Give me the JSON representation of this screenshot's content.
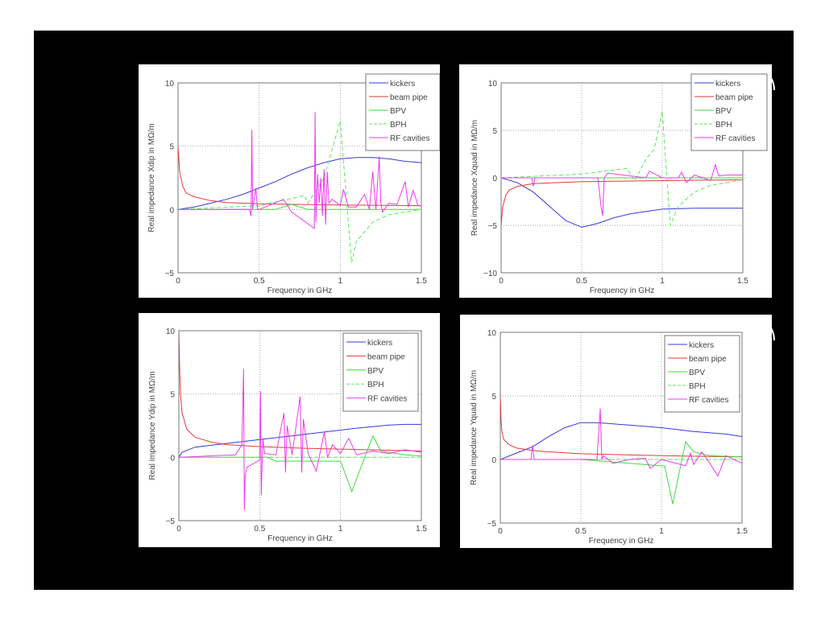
{
  "colors": {
    "kickers": "#3838dc",
    "beam pipe": "#e63a3a",
    "BPV": "#3cdc3c",
    "BPH": "#5ce85c",
    "RF cavities": "#ec3aec"
  },
  "chart_data": [
    {
      "type": "line",
      "title": "",
      "xlabel": "Frequency in GHz",
      "ylabel": "Real impedance Xdip in MΩ/m",
      "xlim": [
        0,
        1.5
      ],
      "ylim": [
        -5,
        10
      ],
      "xticks": [
        "0",
        "0.5",
        "1",
        "1.5"
      ],
      "yticks": [
        "−5",
        "0",
        "5",
        "10"
      ],
      "grid": true,
      "legend": "top-right",
      "series": [
        {
          "name": "kickers",
          "style": "solid",
          "x": [
            0,
            0.1,
            0.2,
            0.3,
            0.4,
            0.5,
            0.6,
            0.7,
            0.8,
            0.9,
            1.0,
            1.1,
            1.2,
            1.3,
            1.4,
            1.5
          ],
          "y": [
            0,
            0.2,
            0.5,
            0.8,
            1.2,
            1.7,
            2.2,
            2.8,
            3.3,
            3.7,
            4.0,
            4.1,
            4.1,
            4.0,
            3.8,
            3.7
          ]
        },
        {
          "name": "beam pipe",
          "style": "solid",
          "x": [
            0,
            0.01,
            0.03,
            0.05,
            0.1,
            0.2,
            0.3,
            0.5,
            1.0,
            1.5
          ],
          "y": [
            5,
            3,
            1.8,
            1.3,
            1.0,
            0.7,
            0.55,
            0.45,
            0.35,
            0.3
          ]
        },
        {
          "name": "BPV",
          "style": "solid",
          "x": [
            0,
            0.6,
            0.7,
            0.8,
            1.5
          ],
          "y": [
            0,
            0,
            0.4,
            0,
            0
          ]
        },
        {
          "name": "BPH",
          "style": "dashed",
          "x": [
            0,
            0.5,
            0.78,
            0.8,
            0.9,
            1.0,
            1.07,
            1.1,
            1.2,
            1.3,
            1.5
          ],
          "y": [
            0,
            0.3,
            1.1,
            0.5,
            2.5,
            7,
            -4.2,
            -2.5,
            -1,
            -0.4,
            0
          ]
        },
        {
          "name": "RF cavities",
          "style": "solid",
          "x": [
            0,
            0.44,
            0.45,
            0.455,
            0.46,
            0.48,
            0.49,
            0.5,
            0.65,
            0.7,
            0.84,
            0.845,
            0.85,
            0.86,
            0.87,
            0.88,
            0.89,
            0.9,
            0.91,
            0.92,
            0.93,
            0.95,
            1.0,
            1.02,
            1.05,
            1.1,
            1.15,
            1.18,
            1.2,
            1.22,
            1.24,
            1.25,
            1.26,
            1.3,
            1.35,
            1.4,
            1.42,
            1.45,
            1.48,
            1.5
          ],
          "y": [
            0,
            0,
            -0.5,
            6.3,
            0,
            1.7,
            0,
            0,
            0.8,
            -0.2,
            -1.5,
            7.7,
            -1,
            2.8,
            0.5,
            2.5,
            -0.5,
            3.2,
            -1.2,
            3,
            0.5,
            0.8,
            0.3,
            1.6,
            0.2,
            0.2,
            1.2,
            0,
            3,
            0,
            4.2,
            0.5,
            -0.2,
            0.5,
            0.4,
            2.2,
            0.2,
            1.5,
            0.3,
            0.3
          ]
        }
      ]
    },
    {
      "type": "line",
      "title": "",
      "xlabel": "Frequency in GHz",
      "ylabel": "Real impedance Xquad in MΩ/m",
      "xlim": [
        0,
        1.5
      ],
      "ylim": [
        -10,
        10
      ],
      "xticks": [
        "0",
        "0.5",
        "1",
        "1.5"
      ],
      "yticks": [
        "−10",
        "−5",
        "0",
        "5",
        "10"
      ],
      "grid": true,
      "legend": "top-right",
      "series": [
        {
          "name": "kickers",
          "style": "solid",
          "x": [
            0,
            0.1,
            0.2,
            0.3,
            0.4,
            0.5,
            0.6,
            0.7,
            0.8,
            1.0,
            1.2,
            1.5
          ],
          "y": [
            0,
            -0.5,
            -1.5,
            -3,
            -4.5,
            -5.2,
            -4.8,
            -4.2,
            -3.8,
            -3.3,
            -3.2,
            -3.2
          ]
        },
        {
          "name": "beam pipe",
          "style": "solid",
          "x": [
            0,
            0.01,
            0.03,
            0.05,
            0.1,
            0.2,
            0.5,
            1.0,
            1.5
          ],
          "y": [
            -5,
            -3,
            -1.8,
            -1.3,
            -0.9,
            -0.6,
            -0.4,
            -0.3,
            -0.2
          ]
        },
        {
          "name": "BPV",
          "style": "solid",
          "x": [
            0,
            1.5
          ],
          "y": [
            0,
            0
          ]
        },
        {
          "name": "BPH",
          "style": "dashed",
          "x": [
            0,
            0.5,
            0.78,
            0.83,
            0.9,
            0.95,
            1.0,
            1.05,
            1.1,
            1.2,
            1.3,
            1.5
          ],
          "y": [
            0,
            0.4,
            1,
            -0.3,
            2,
            3,
            7,
            -5,
            -3,
            -1.5,
            -0.8,
            -0.2
          ]
        },
        {
          "name": "RF cavities",
          "style": "solid",
          "x": [
            0,
            0.19,
            0.2,
            0.21,
            0.6,
            0.62,
            0.63,
            0.64,
            0.66,
            0.9,
            0.92,
            1.0,
            1.1,
            1.12,
            1.15,
            1.2,
            1.3,
            1.33,
            1.35,
            1.4,
            1.5
          ],
          "y": [
            0,
            0,
            -0.9,
            0,
            0,
            -3,
            -4,
            0,
            0.5,
            0,
            0.7,
            0,
            0,
            0.6,
            -0.5,
            0.3,
            -0.3,
            1.4,
            0.2,
            0.3,
            0.3
          ]
        }
      ]
    },
    {
      "type": "line",
      "title": "",
      "xlabel": "Frequency in GHz",
      "ylabel": "Real impedance Ydip in MΩ/m",
      "xlim": [
        0,
        1.5
      ],
      "ylim": [
        -5,
        10
      ],
      "xticks": [
        "0",
        "0.5",
        "1",
        "1.5"
      ],
      "yticks": [
        "−5",
        "0",
        "5",
        "10"
      ],
      "grid": true,
      "legend": "top-right",
      "series": [
        {
          "name": "kickers",
          "style": "solid",
          "x": [
            0,
            0.02,
            0.1,
            0.3,
            0.5,
            0.7,
            0.9,
            1.1,
            1.3,
            1.4,
            1.5
          ],
          "y": [
            0,
            0.4,
            0.8,
            1.1,
            1.4,
            1.7,
            2,
            2.3,
            2.55,
            2.6,
            2.6
          ]
        },
        {
          "name": "beam pipe",
          "style": "solid",
          "x": [
            0,
            0.005,
            0.01,
            0.02,
            0.05,
            0.1,
            0.2,
            0.3,
            0.5,
            0.8,
            1.0,
            1.5
          ],
          "y": [
            10,
            7,
            5,
            3.5,
            2.2,
            1.6,
            1.2,
            1.0,
            0.85,
            0.7,
            0.65,
            0.5
          ]
        },
        {
          "name": "BPV",
          "style": "solid",
          "x": [
            0,
            0.55,
            0.6,
            1.0,
            1.07,
            1.2,
            1.25,
            1.4,
            1.5
          ],
          "y": [
            0,
            0,
            -0.3,
            -0.3,
            -2.7,
            1.7,
            0.5,
            0.2,
            0.1
          ]
        },
        {
          "name": "BPH",
          "style": "dashed",
          "x": [
            0,
            1.5
          ],
          "y": [
            0,
            0
          ]
        },
        {
          "name": "RF cavities",
          "style": "solid",
          "x": [
            0,
            0.35,
            0.39,
            0.4,
            0.405,
            0.41,
            0.42,
            0.5,
            0.505,
            0.51,
            0.52,
            0.53,
            0.6,
            0.65,
            0.66,
            0.67,
            0.7,
            0.75,
            0.76,
            0.77,
            0.8,
            0.85,
            0.9,
            0.92,
            0.95,
            1.0,
            1.05,
            1.1,
            1.2,
            1.3,
            1.4,
            1.5
          ],
          "y": [
            0,
            0.2,
            1,
            7,
            -4.2,
            -1.5,
            -0.8,
            -0.2,
            5.2,
            -3,
            1.5,
            0.3,
            0.2,
            3.5,
            -1.2,
            2.5,
            0.2,
            4.8,
            -1.2,
            3,
            0.3,
            -1.1,
            2,
            0,
            1,
            0.3,
            1.5,
            0.2,
            0.5,
            0.3,
            0.6,
            0.4
          ]
        }
      ]
    },
    {
      "type": "line",
      "title": "",
      "xlabel": "Frequency in GHz",
      "ylabel": "Real impedance Yquad in MΩ/m",
      "xlim": [
        0,
        1.5
      ],
      "ylim": [
        -5,
        10
      ],
      "xticks": [
        "0",
        "0.5",
        "1",
        "1.5"
      ],
      "yticks": [
        "−5",
        "0",
        "5",
        "10"
      ],
      "grid": true,
      "legend": "top-right",
      "series": [
        {
          "name": "kickers",
          "style": "solid",
          "x": [
            0,
            0.1,
            0.2,
            0.3,
            0.4,
            0.5,
            0.6,
            0.8,
            1.0,
            1.2,
            1.4,
            1.5
          ],
          "y": [
            0,
            0.5,
            1,
            1.8,
            2.5,
            2.9,
            2.9,
            2.7,
            2.5,
            2.2,
            2,
            1.8
          ]
        },
        {
          "name": "beam pipe",
          "style": "solid",
          "x": [
            0,
            0.005,
            0.01,
            0.02,
            0.05,
            0.1,
            0.2,
            0.3,
            0.5,
            1.0,
            1.5
          ],
          "y": [
            5,
            3,
            2.2,
            1.6,
            1.2,
            0.9,
            0.7,
            0.6,
            0.45,
            0.3,
            0.2
          ]
        },
        {
          "name": "BPV",
          "style": "solid",
          "x": [
            0,
            0.5,
            1.0,
            1.02,
            1.07,
            1.15,
            1.2,
            1.3,
            1.5
          ],
          "y": [
            0,
            0,
            -0.5,
            -0.5,
            -3.5,
            1.4,
            0.6,
            0.3,
            0.2
          ]
        },
        {
          "name": "BPH",
          "style": "dashed",
          "x": [
            0,
            1.5
          ],
          "y": [
            0,
            0
          ]
        },
        {
          "name": "RF cavities",
          "style": "solid",
          "x": [
            0,
            0.19,
            0.2,
            0.21,
            0.6,
            0.62,
            0.63,
            0.64,
            0.7,
            0.8,
            0.9,
            0.93,
            1.0,
            1.15,
            1.18,
            1.2,
            1.25,
            1.3,
            1.35,
            1.4,
            1.5
          ],
          "y": [
            0,
            0,
            1.1,
            0,
            0,
            4,
            0,
            0.3,
            -0.3,
            0,
            0.1,
            -0.7,
            0,
            -0.5,
            0.5,
            -0.4,
            0.6,
            -0.3,
            -1.3,
            0.3,
            -0.3
          ]
        }
      ]
    }
  ]
}
